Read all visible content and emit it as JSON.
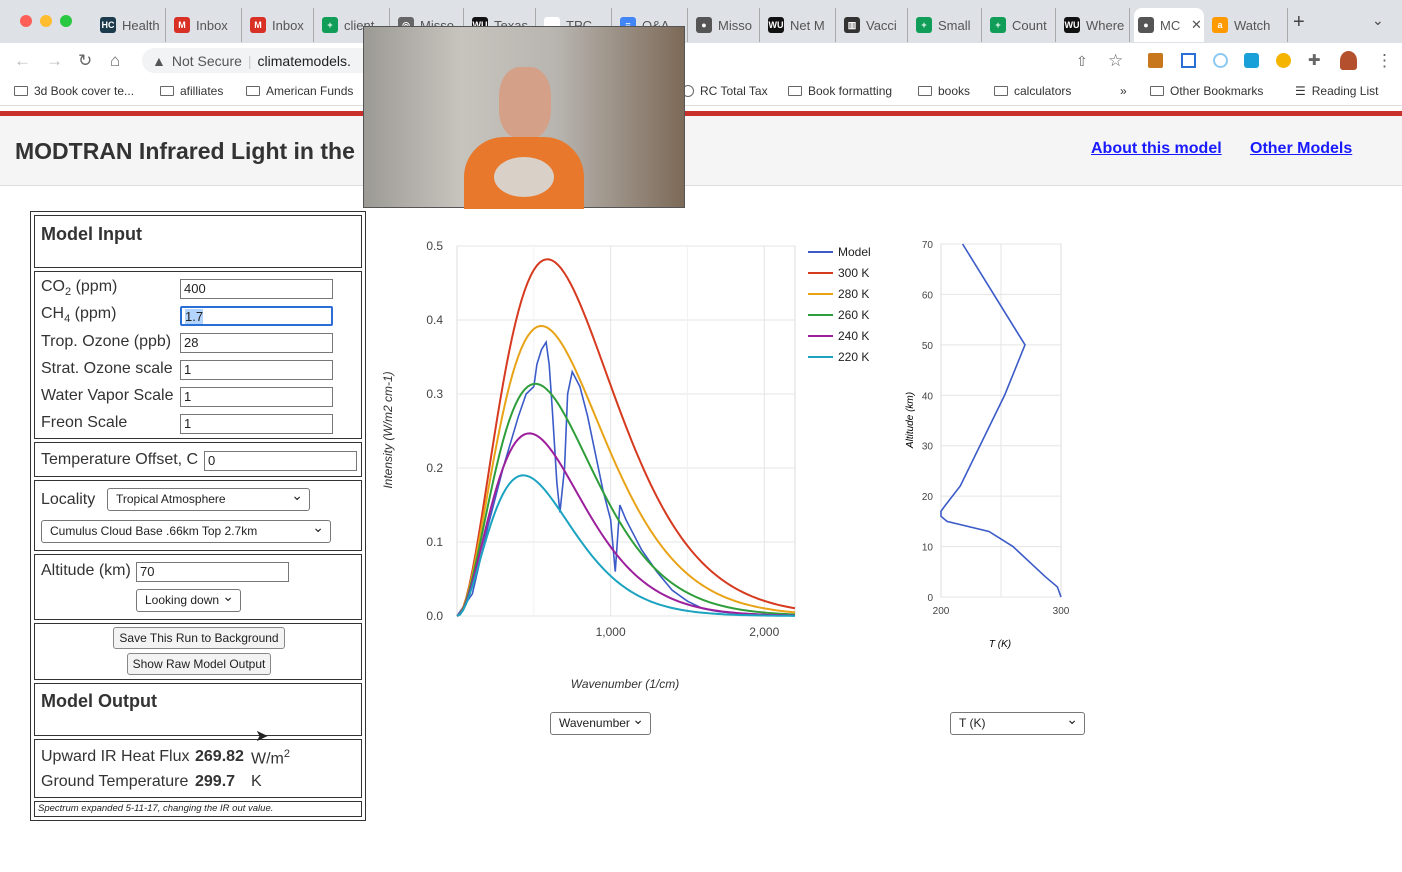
{
  "browser": {
    "tabs": [
      {
        "label": "Health",
        "icon": "HC",
        "color": "#1b3a4b"
      },
      {
        "label": "Inbox",
        "icon": "M",
        "color": "#d93025"
      },
      {
        "label": "Inbox",
        "icon": "M",
        "color": "#d93025"
      },
      {
        "label": "client",
        "icon": "+",
        "color": "#0f9d58"
      },
      {
        "label": "Misso",
        "icon": "◎",
        "color": "#666"
      },
      {
        "label": "Texas",
        "icon": "WU",
        "color": "#111"
      },
      {
        "label": "TPC",
        "icon": "",
        "color": "#fff"
      },
      {
        "label": "Q&A",
        "icon": "≡",
        "color": "#4285f4"
      },
      {
        "label": "Misso",
        "icon": "●",
        "color": "#555"
      },
      {
        "label": "Net M",
        "icon": "WU",
        "color": "#111"
      },
      {
        "label": "Vacci",
        "icon": "▥",
        "color": "#333"
      },
      {
        "label": "Small",
        "icon": "+",
        "color": "#0f9d58"
      },
      {
        "label": "Count",
        "icon": "+",
        "color": "#0f9d58"
      },
      {
        "label": "Where",
        "icon": "WU",
        "color": "#111"
      },
      {
        "label": "MC",
        "icon": "●",
        "color": "#555",
        "active": true
      },
      {
        "label": "Watch",
        "icon": "a",
        "color": "#f90"
      }
    ],
    "security": "Not Secure",
    "url": "climatemodels.",
    "bookmarks": [
      "3d Book cover te...",
      "afilliates",
      "American Funds",
      "RC Total Tax",
      "Book formatting",
      "books",
      "calculators"
    ],
    "overflow": "»",
    "other_bookmarks": "Other Bookmarks",
    "reading_list": "Reading List"
  },
  "page": {
    "title": "MODTRAN Infrared Light in the",
    "about_link": "About this model",
    "other_link": "Other Models"
  },
  "input": {
    "heading": "Model Input",
    "co2_label": "CO",
    "co2_sub": "2",
    "co2_unit": " (ppm)",
    "co2": "400",
    "ch4_label": "CH",
    "ch4_sub": "4",
    "ch4_unit": " (ppm)",
    "ch4": "1.7",
    "trop_ozone_label": "Trop. Ozone (ppb)",
    "trop_ozone": "28",
    "strat_ozone_label": "Strat. Ozone scale",
    "strat_ozone": "1",
    "water_label": "Water Vapor Scale",
    "water": "1",
    "freon_label": "Freon Scale",
    "freon": "1",
    "temp_offset_label": "Temperature Offset, C",
    "temp_offset": "0",
    "locality_label": "Locality",
    "locality": "Tropical Atmosphere",
    "cloud": "Cumulus Cloud Base .66km Top 2.7km",
    "altitude_label": "Altitude (km)",
    "altitude": "70",
    "direction": "Looking down",
    "save_button": "Save This Run to Background",
    "raw_button": "Show Raw Model Output"
  },
  "output": {
    "heading": "Model Output",
    "flux_label": "Upward IR Heat Flux",
    "flux": "269.82",
    "flux_unit": "W/m",
    "flux_sup": "2",
    "ground_label": "Ground Temperature",
    "ground": "299.7",
    "ground_unit": "K",
    "note": "Spectrum expanded 5-11-17, changing the IR out value."
  },
  "x_select": "Wavenumber",
  "t_select": "T (K)",
  "chart_data": [
    {
      "type": "line",
      "xlabel": "Wavenumber (1/cm)",
      "ylabel": "Intensity (W/m2 cm-1)",
      "xlim": [
        0,
        2200
      ],
      "ylim": [
        0,
        0.5
      ],
      "xticks": [
        "1,000",
        "2,000"
      ],
      "xtick_values": [
        1000,
        2000
      ],
      "yticks": [
        "0.0",
        "0.1",
        "0.2",
        "0.3",
        "0.4",
        "0.5"
      ],
      "grid": true,
      "legend": "right",
      "series": [
        {
          "name": "Model",
          "color": "#3b5bc8",
          "x": [
            0,
            100,
            200,
            300,
            400,
            450,
            500,
            520,
            550,
            580,
            600,
            620,
            650,
            670,
            700,
            720,
            750,
            800,
            850,
            900,
            950,
            1000,
            1030,
            1060,
            1100,
            1200,
            1300,
            1400,
            1500,
            1600,
            1700,
            1800,
            2000,
            2200
          ],
          "y": [
            0,
            0.03,
            0.12,
            0.2,
            0.27,
            0.3,
            0.31,
            0.34,
            0.36,
            0.37,
            0.34,
            0.28,
            0.18,
            0.14,
            0.2,
            0.3,
            0.33,
            0.31,
            0.27,
            0.22,
            0.17,
            0.13,
            0.06,
            0.15,
            0.13,
            0.09,
            0.06,
            0.035,
            0.02,
            0.01,
            0.006,
            0.004,
            0.002,
            0.001
          ]
        },
        {
          "name": "300 K",
          "color": "#d63a1f",
          "temperature": 300
        },
        {
          "name": "280 K",
          "color": "#e8a317",
          "temperature": 280
        },
        {
          "name": "260 K",
          "color": "#2e9e3a",
          "temperature": 260
        },
        {
          "name": "240 K",
          "color": "#9c1f9c",
          "temperature": 240
        },
        {
          "name": "220 K",
          "color": "#1ba3c0",
          "temperature": 220
        }
      ]
    },
    {
      "type": "line",
      "xlabel": "T (K)",
      "ylabel": "Altitude (km)",
      "xlim": [
        200,
        300
      ],
      "ylim": [
        0,
        70
      ],
      "xticks": [
        "200",
        "300"
      ],
      "yticks": [
        "0",
        "10",
        "20",
        "30",
        "40",
        "50",
        "60",
        "70"
      ],
      "grid": true,
      "series": [
        {
          "color": "#3b5bc8",
          "x": [
            300,
            297,
            287,
            260,
            240,
            205,
            200,
            200,
            203,
            216,
            253,
            270,
            218
          ],
          "y": [
            0,
            2,
            4,
            10,
            13,
            15,
            16,
            17,
            18,
            22,
            40,
            50,
            70
          ]
        }
      ]
    }
  ]
}
